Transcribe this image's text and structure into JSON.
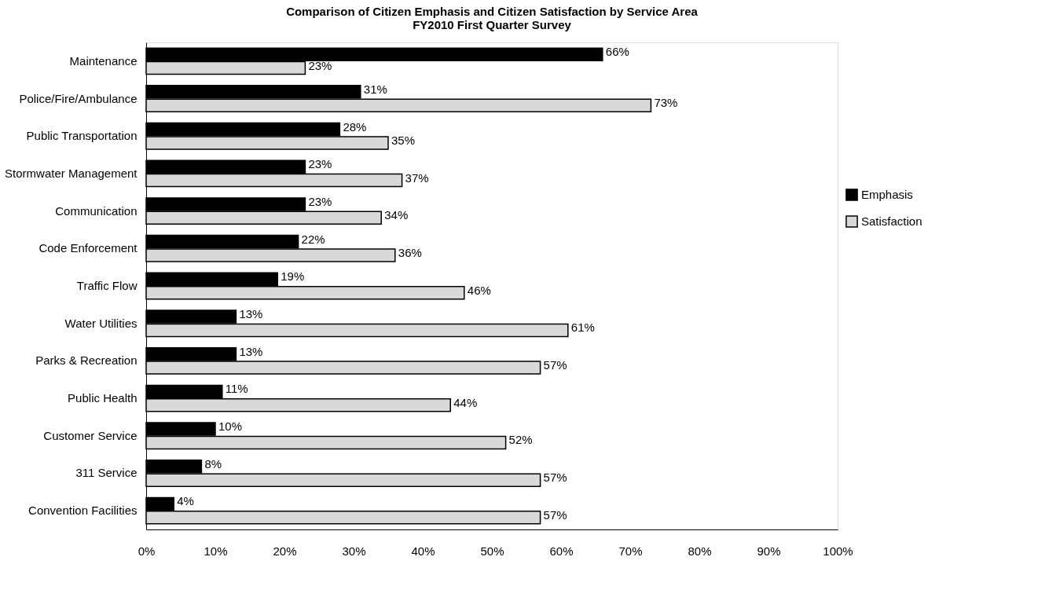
{
  "chart_data": {
    "type": "bar",
    "orientation": "horizontal",
    "title": "Comparison of Citizen Emphasis and Citizen Satisfaction by Service Area",
    "subtitle": "FY2010 First Quarter Survey",
    "categories": [
      "Maintenance",
      "Police/Fire/Ambulance",
      "Public Transportation",
      "Stormwater Management",
      "Communication",
      "Code Enforcement",
      "Traffic Flow",
      "Water Utilities",
      "Parks & Recreation",
      "Public Health",
      "Customer Service",
      "311 Service",
      "Convention Facilities"
    ],
    "series": [
      {
        "name": "Emphasis",
        "color": "#000000",
        "values": [
          66,
          31,
          28,
          23,
          23,
          22,
          19,
          13,
          13,
          11,
          10,
          8,
          4
        ],
        "value_labels": [
          "66%",
          "31%",
          "28%",
          "23%",
          "23%",
          "22%",
          "19%",
          "13%",
          "13%",
          "11%",
          "10%",
          "8%",
          "4%"
        ]
      },
      {
        "name": "Satisfaction",
        "color": "#d9d9d9",
        "values": [
          23,
          73,
          35,
          37,
          34,
          36,
          46,
          61,
          57,
          44,
          52,
          57,
          57
        ],
        "value_labels": [
          "23%",
          "73%",
          "35%",
          "37%",
          "34%",
          "36%",
          "46%",
          "61%",
          "57%",
          "44%",
          "52%",
          "57%",
          "57%"
        ]
      }
    ],
    "xlim": [
      0,
      100
    ],
    "xticks": [
      {
        "value": 0,
        "label": "0%"
      },
      {
        "value": 10,
        "label": "10%"
      },
      {
        "value": 20,
        "label": "20%"
      },
      {
        "value": 30,
        "label": "30%"
      },
      {
        "value": 40,
        "label": "40%"
      },
      {
        "value": 50,
        "label": "50%"
      },
      {
        "value": 60,
        "label": "60%"
      },
      {
        "value": 70,
        "label": "70%"
      },
      {
        "value": 80,
        "label": "80%"
      },
      {
        "value": 90,
        "label": "90%"
      },
      {
        "value": 100,
        "label": "100%"
      }
    ],
    "grid": false,
    "legend": "right"
  }
}
